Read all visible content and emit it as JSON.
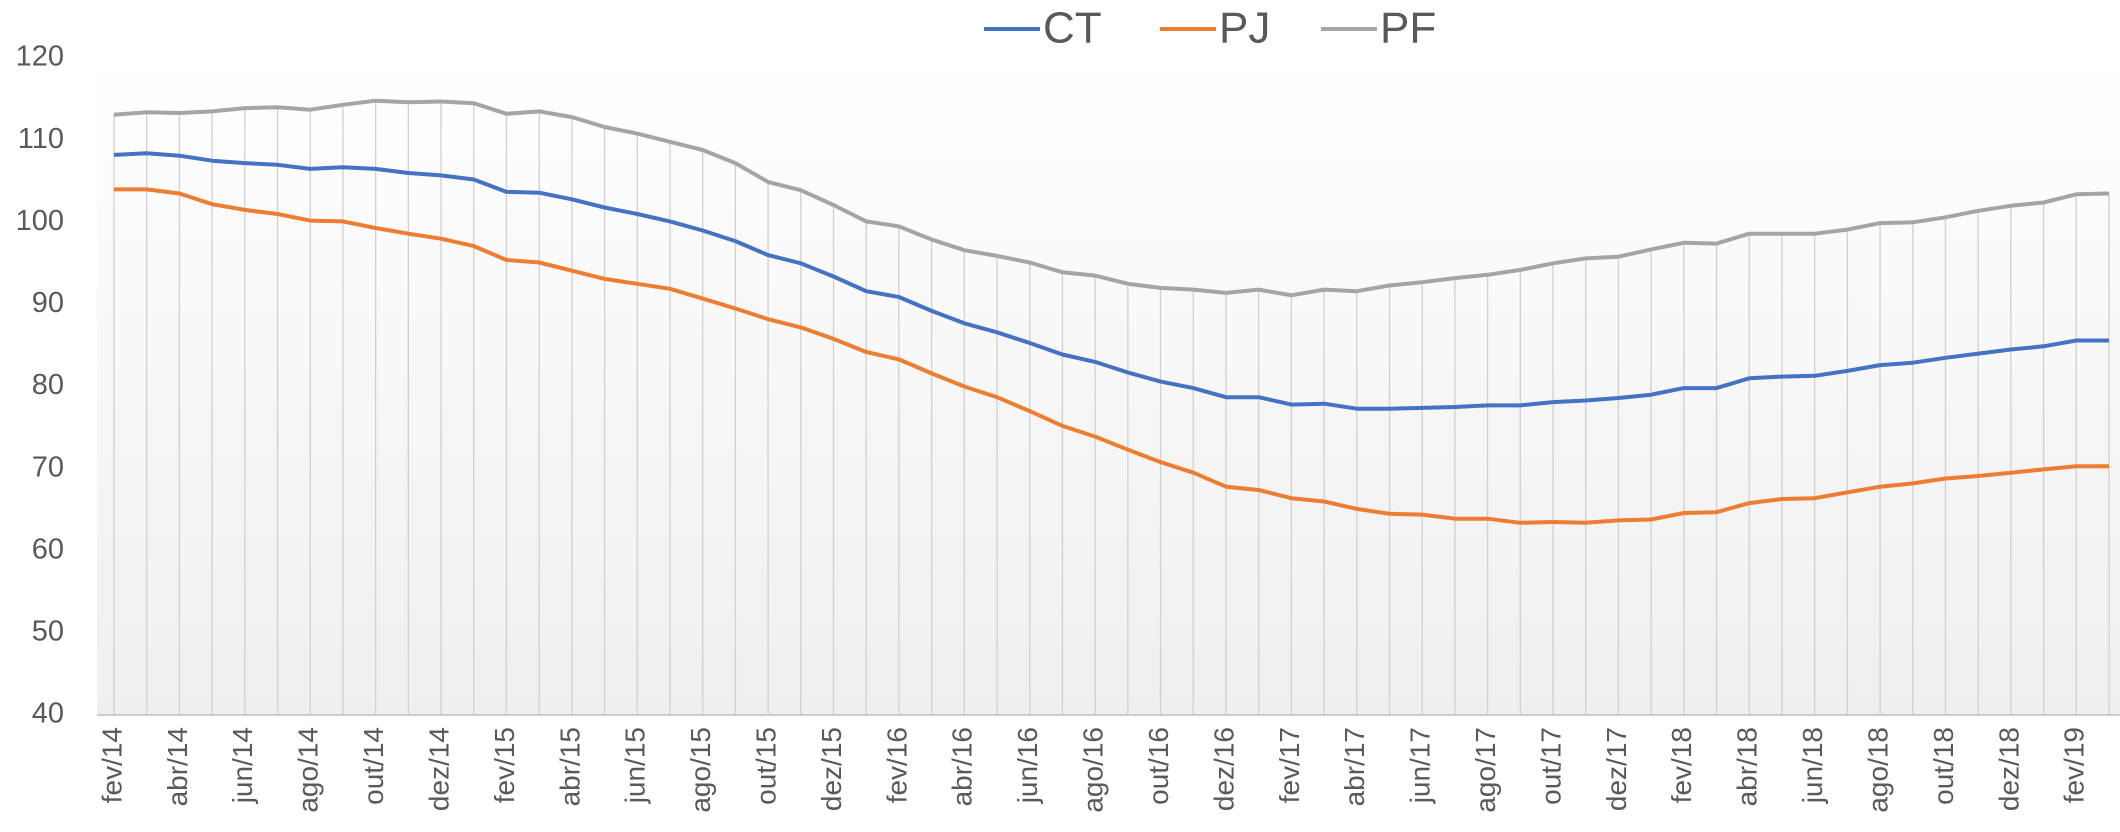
{
  "chart_data": {
    "type": "line",
    "categories": [
      "fev/14",
      null,
      "abr/14",
      null,
      "jun/14",
      null,
      "ago/14",
      null,
      "out/14",
      null,
      "dez/14",
      null,
      "fev/15",
      null,
      "abr/15",
      null,
      "jun/15",
      null,
      "ago/15",
      null,
      "out/15",
      null,
      "dez/15",
      null,
      "fev/16",
      null,
      "abr/16",
      null,
      "jun/16",
      null,
      "ago/16",
      null,
      "out/16",
      null,
      "dez/16",
      null,
      "fev/17",
      null,
      "abr/17",
      null,
      "jun/17",
      null,
      "ago/17",
      null,
      "out/17",
      null,
      "dez/17",
      null,
      "fev/18",
      null,
      "abr/18",
      null,
      "jun/18",
      null,
      "ago/18",
      null,
      "out/18",
      null,
      "dez/18",
      null,
      "fev/19",
      null
    ],
    "series": [
      {
        "name": "CT",
        "color": "#4472c4",
        "values": [
          108.2,
          108.4,
          108.1,
          107.5,
          107.2,
          107.0,
          106.5,
          106.7,
          106.5,
          106.0,
          105.7,
          105.2,
          103.7,
          103.6,
          102.8,
          101.8,
          101.0,
          100.1,
          99.0,
          97.7,
          96.0,
          95.0,
          93.4,
          91.6,
          90.9,
          89.2,
          87.7,
          86.6,
          85.3,
          83.9,
          83.0,
          81.7,
          80.6,
          79.8,
          78.7,
          78.7,
          77.8,
          77.9,
          77.3,
          77.3,
          77.4,
          77.5,
          77.7,
          77.7,
          78.1,
          78.3,
          78.6,
          79.0,
          79.8,
          79.8,
          81.0,
          81.2,
          81.3,
          81.9,
          82.6,
          82.9,
          83.5,
          84.0,
          84.5,
          84.9,
          85.6,
          85.6
        ]
      },
      {
        "name": "PJ",
        "color": "#ed7d31",
        "values": [
          104.0,
          104.0,
          103.5,
          102.2,
          101.5,
          101.0,
          100.2,
          100.1,
          99.3,
          98.6,
          98.0,
          97.1,
          95.4,
          95.1,
          94.1,
          93.1,
          92.5,
          91.9,
          90.7,
          89.5,
          88.2,
          87.2,
          85.8,
          84.2,
          83.3,
          81.6,
          80.0,
          78.7,
          77.0,
          75.2,
          73.9,
          72.3,
          70.8,
          69.5,
          67.8,
          67.4,
          66.4,
          66.0,
          65.1,
          64.5,
          64.4,
          63.9,
          63.9,
          63.4,
          63.5,
          63.4,
          63.7,
          63.8,
          64.6,
          64.7,
          65.8,
          66.3,
          66.4,
          67.1,
          67.8,
          68.2,
          68.8,
          69.1,
          69.5,
          69.9,
          70.3,
          70.3
        ]
      },
      {
        "name": "PF",
        "color": "#a5a5a5",
        "values": [
          113.1,
          113.4,
          113.3,
          113.5,
          113.9,
          114.0,
          113.7,
          114.3,
          114.8,
          114.6,
          114.7,
          114.5,
          113.2,
          113.5,
          112.8,
          111.6,
          110.8,
          109.8,
          108.8,
          107.2,
          104.9,
          103.9,
          102.1,
          100.1,
          99.5,
          97.9,
          96.6,
          95.9,
          95.1,
          93.9,
          93.5,
          92.5,
          92.0,
          91.8,
          91.4,
          91.8,
          91.1,
          91.8,
          91.6,
          92.3,
          92.7,
          93.2,
          93.6,
          94.2,
          95.0,
          95.6,
          95.8,
          96.7,
          97.5,
          97.4,
          98.6,
          98.6,
          98.6,
          99.1,
          99.9,
          100.0,
          100.6,
          101.4,
          102.0,
          102.4,
          103.4,
          103.5
        ]
      }
    ],
    "ylim": [
      40,
      120
    ],
    "yticks": [
      40,
      50,
      60,
      70,
      80,
      90,
      100,
      110,
      120
    ],
    "legend": "top"
  }
}
